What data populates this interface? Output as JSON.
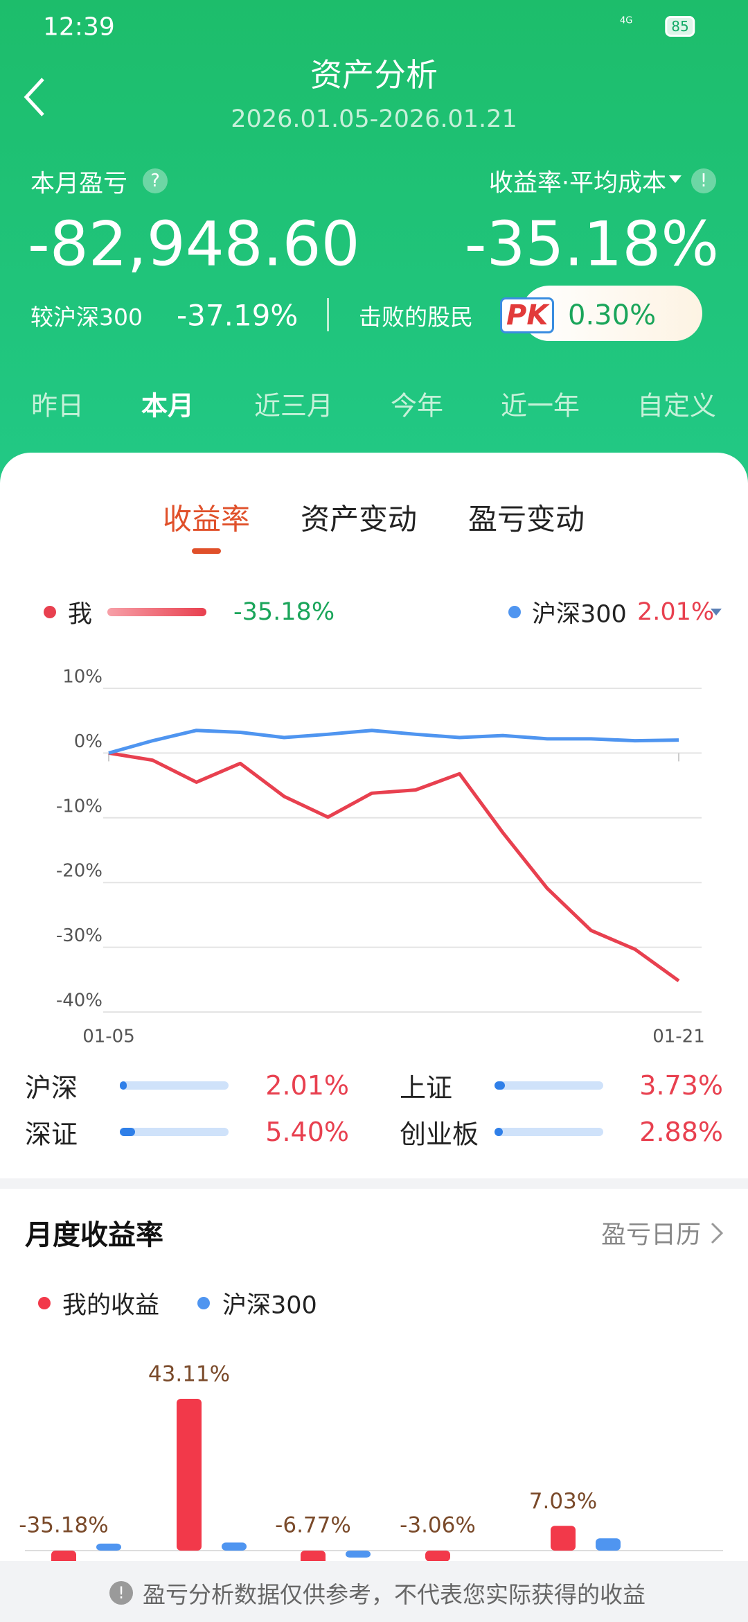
{
  "status_bar": {
    "time": "12:39",
    "network": "4G",
    "battery": "85"
  },
  "header": {
    "title": "资产分析",
    "date_range": "2026.01.05-2026.01.21"
  },
  "summary": {
    "pnl_label": "本月盈亏",
    "pnl": "-82,948.60",
    "rate_label": "收益率·平均成本",
    "rate": "-35.18%",
    "compare_label": "较沪深300",
    "compare_value": "-37.19%",
    "beat_label": "击败的股民",
    "pk_badge": "PK",
    "beat_value": "0.30%"
  },
  "period_tabs": [
    "昨日",
    "本月",
    "近三月",
    "今年",
    "近一年",
    "自定义"
  ],
  "chart_tabs": [
    "收益率",
    "资产变动",
    "盈亏变动"
  ],
  "chart_data": {
    "type": "line",
    "categories": [
      "01-05",
      null,
      null,
      null,
      null,
      null,
      null,
      null,
      null,
      null,
      null,
      null,
      null,
      "01-21"
    ],
    "series": [
      {
        "name": "我",
        "color": "#e8404f",
        "legend_value": "-35.18%",
        "values": [
          0,
          -1.1,
          -4.5,
          -1.6,
          -6.7,
          -9.9,
          -6.2,
          -5.7,
          -3.2,
          -12.4,
          -20.9,
          -27.4,
          -30.3,
          -35.18
        ]
      },
      {
        "name": "沪深300",
        "color": "#4f95f0",
        "legend_value": "2.01%",
        "values": [
          0,
          1.9,
          3.5,
          3.2,
          2.4,
          2.9,
          3.5,
          2.9,
          2.4,
          2.7,
          2.2,
          2.2,
          1.9,
          2.01
        ]
      }
    ],
    "ylim": [
      -40,
      10
    ],
    "yticks": [
      {
        "value": 10,
        "label": "10%"
      },
      {
        "value": 0,
        "label": "0%"
      },
      {
        "value": -10,
        "label": "-10%"
      },
      {
        "value": -20,
        "label": "-20%"
      },
      {
        "value": -30,
        "label": "-30%"
      },
      {
        "value": -40,
        "label": "-40%"
      }
    ],
    "grid": true
  },
  "index_list": [
    {
      "name": "沪深",
      "value": 2.01,
      "label": "2.01%"
    },
    {
      "name": "上证",
      "value": 3.73,
      "label": "3.73%"
    },
    {
      "name": "深证",
      "value": 5.4,
      "label": "5.40%"
    },
    {
      "name": "创业板",
      "value": 2.88,
      "label": "2.88%"
    }
  ],
  "monthly": {
    "title": "月度收益率",
    "link": "盈亏日历",
    "chart_data": {
      "type": "bar",
      "categories": [
        null,
        null,
        null,
        null,
        null
      ],
      "series": [
        {
          "name": "我的收益",
          "color": "#f2394a",
          "values": [
            -35.18,
            43.11,
            -6.77,
            -3.06,
            7.03
          ],
          "value_labels": [
            "-35.18%",
            "43.11%",
            "-6.77%",
            "-3.06%",
            "7.03%"
          ]
        },
        {
          "name": "沪深300",
          "color": "#4f95f0",
          "values": [
            2.0,
            2.3,
            -2.0,
            null,
            3.5
          ]
        }
      ]
    }
  },
  "footer": {
    "notice": "盈亏分析数据仅供参考，不代表您实际获得的收益"
  }
}
